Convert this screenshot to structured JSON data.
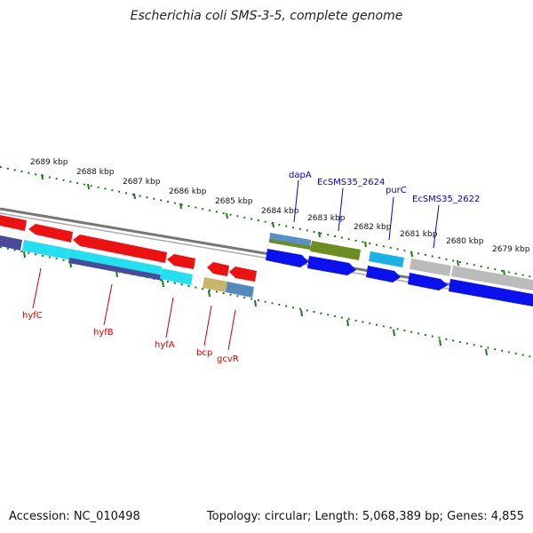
{
  "title": "Escherichia coli SMS-3-5, complete genome",
  "accession": "Accession: NC_010498",
  "summary": "Topology: circular; Length: 5,068,389 bp; Genes: 4,855",
  "ruler": {
    "labels": [
      "2689 kbp",
      "2688 kbp",
      "2687 kbp",
      "2686 kbp",
      "2685 kbp",
      "2684 kbp",
      "2683 kbp",
      "2682 kbp",
      "2681 kbp",
      "2680 kbp",
      "2679 kbp"
    ]
  },
  "colors": {
    "forward_label": "#0000cc",
    "reverse_label": "#cc0000",
    "ruler": "#1a7a1a",
    "backbone": "#888888"
  },
  "genes": [
    {
      "name": "dapA",
      "strand": "forward",
      "color": "#0000cc"
    },
    {
      "name": "EcSMS35_2624",
      "strand": "forward",
      "color": "#0000cc"
    },
    {
      "name": "purC",
      "strand": "forward",
      "color": "#0000cc"
    },
    {
      "name": "EcSMS35_2622",
      "strand": "forward",
      "color": "#0000cc"
    },
    {
      "name": "hyfC",
      "strand": "reverse",
      "color": "#cc0000"
    },
    {
      "name": "hyfB",
      "strand": "reverse",
      "color": "#cc0000"
    },
    {
      "name": "hyfA",
      "strand": "reverse",
      "color": "#cc0000"
    },
    {
      "name": "bcp",
      "strand": "reverse",
      "color": "#cc0000"
    },
    {
      "name": "gcvR",
      "strand": "reverse",
      "color": "#cc0000"
    }
  ]
}
